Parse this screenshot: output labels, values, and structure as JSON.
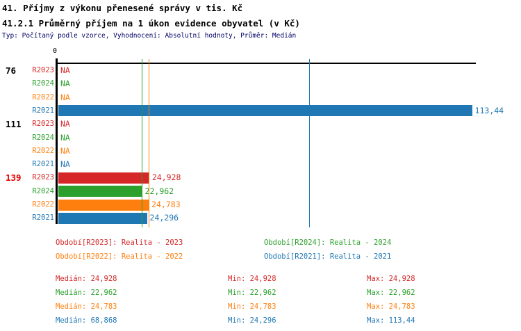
{
  "title1": "41. Příjmy z výkonu přenesené správy v tis. Kč",
  "title2": "41.2.1 Průměrný příjem na 1 úkon evidence obyvatel (v Kč)",
  "subtitle": "Typ: Počítaný podle vzorce, Vyhodnocení: Absolutní hodnoty, Průměr: Medián",
  "colors": {
    "R2023": "#d62728",
    "R2024": "#2ca02c",
    "R2022": "#ff7f0e",
    "R2021": "#1f77b4",
    "highlight_group_label": "#e60000",
    "normal_group_label": "#000000",
    "axis": "#000000",
    "subtitle_text": "#000066"
  },
  "chart_data": {
    "type": "bar",
    "orientation": "horizontal",
    "x_origin_label": "0",
    "axis_range": [
      0,
      114.3
    ],
    "na_text": "NA",
    "series_order": [
      "R2023",
      "R2024",
      "R2022",
      "R2021"
    ],
    "groups": [
      {
        "label": "76",
        "label_color": "#000000",
        "rows": [
          {
            "series": "R2023",
            "value": null,
            "display": "NA"
          },
          {
            "series": "R2024",
            "value": null,
            "display": "NA"
          },
          {
            "series": "R2022",
            "value": null,
            "display": "NA"
          },
          {
            "series": "R2021",
            "value": 113.44,
            "display": "113,44"
          }
        ]
      },
      {
        "label": "111",
        "label_color": "#000000",
        "rows": [
          {
            "series": "R2023",
            "value": null,
            "display": "NA"
          },
          {
            "series": "R2024",
            "value": null,
            "display": "NA"
          },
          {
            "series": "R2022",
            "value": null,
            "display": "NA"
          },
          {
            "series": "R2021",
            "value": null,
            "display": "NA"
          }
        ]
      },
      {
        "label": "139",
        "label_color": "#e60000",
        "rows": [
          {
            "series": "R2023",
            "value": 24.928,
            "display": "24,928"
          },
          {
            "series": "R2024",
            "value": 22.962,
            "display": "22,962"
          },
          {
            "series": "R2022",
            "value": 24.783,
            "display": "24,783"
          },
          {
            "series": "R2021",
            "value": 24.296,
            "display": "24,296"
          }
        ]
      }
    ],
    "median_lines": [
      {
        "series": "R2023",
        "value": 24.928
      },
      {
        "series": "R2024",
        "value": 22.962
      },
      {
        "series": "R2022",
        "value": 24.783
      },
      {
        "series": "R2021",
        "value": 68.868
      }
    ]
  },
  "legend": {
    "items": [
      {
        "series": "R2023",
        "text": "Období[R2023]: Realita - 2023",
        "row": 0,
        "col": 0
      },
      {
        "series": "R2024",
        "text": "Období[R2024]: Realita - 2024",
        "row": 0,
        "col": 1
      },
      {
        "series": "R2022",
        "text": "Období[R2022]: Realita - 2022",
        "row": 1,
        "col": 0
      },
      {
        "series": "R2021",
        "text": "Období[R2021]: Realita - 2021",
        "row": 1,
        "col": 1
      }
    ]
  },
  "stats_labels": {
    "median": "Medián:",
    "min": "Min:",
    "max": "Max:"
  },
  "stats": [
    {
      "series": "R2023",
      "median": "24,928",
      "min": "24,928",
      "max": "24,928"
    },
    {
      "series": "R2024",
      "median": "22,962",
      "min": "22,962",
      "max": "22,962"
    },
    {
      "series": "R2022",
      "median": "24,783",
      "min": "24,783",
      "max": "24,783"
    },
    {
      "series": "R2021",
      "median": "68,868",
      "min": "24,296",
      "max": "113,44"
    }
  ]
}
